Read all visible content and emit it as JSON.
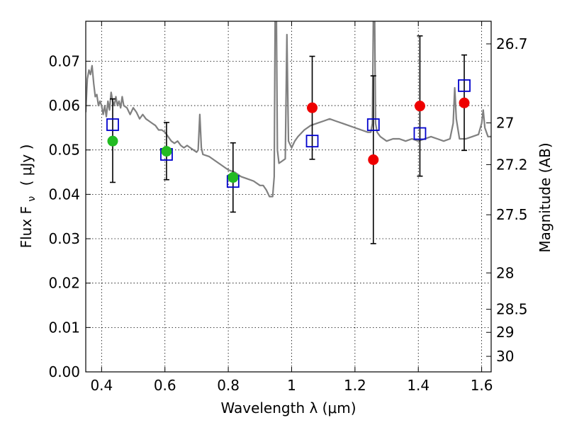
{
  "chart_data": {
    "type": "scatter",
    "xlabel": "Wavelength  λ (μm)",
    "ylabel_left": "Flux  F",
    "ylabel_left_sub": "ν",
    "ylabel_left_unit": "( μJy )",
    "ylabel_right": "Magnitude (AB)",
    "xlim": [
      0.35,
      1.63
    ],
    "ylim": [
      0.0,
      0.079
    ],
    "xticks": [
      {
        "value": 0.4,
        "label": "0.4"
      },
      {
        "value": 0.6,
        "label": "0.6"
      },
      {
        "value": 0.8,
        "label": "0.8"
      },
      {
        "value": 1.0,
        "label": "1"
      },
      {
        "value": 1.2,
        "label": "1.2"
      },
      {
        "value": 1.4,
        "label": "1.4"
      },
      {
        "value": 1.6,
        "label": "1.6"
      }
    ],
    "yticks": [
      {
        "value": 0.0,
        "label": "0.00"
      },
      {
        "value": 0.01,
        "label": "0.01"
      },
      {
        "value": 0.02,
        "label": "0.02"
      },
      {
        "value": 0.03,
        "label": "0.03"
      },
      {
        "value": 0.04,
        "label": "0.04"
      },
      {
        "value": 0.05,
        "label": "0.05"
      },
      {
        "value": 0.06,
        "label": "0.06"
      },
      {
        "value": 0.07,
        "label": "0.07"
      }
    ],
    "right_ticks": [
      {
        "label": "26.7",
        "flux": 0.0739
      },
      {
        "label": "27",
        "flux": 0.0561
      },
      {
        "label": "27.2",
        "flux": 0.0467
      },
      {
        "label": "27.5",
        "flux": 0.0354
      },
      {
        "label": "28",
        "flux": 0.0223
      },
      {
        "label": "28.5",
        "flux": 0.0141
      },
      {
        "label": "29",
        "flux": 0.0089
      },
      {
        "label": "30",
        "flux": 0.0035
      }
    ],
    "grid": true,
    "series": [
      {
        "kind": "spectrum",
        "color": "#808080",
        "points": [
          [
            0.35,
            0.0585
          ],
          [
            0.355,
            0.066
          ],
          [
            0.36,
            0.068
          ],
          [
            0.365,
            0.067
          ],
          [
            0.37,
            0.069
          ],
          [
            0.375,
            0.065
          ],
          [
            0.38,
            0.062
          ],
          [
            0.385,
            0.0625
          ],
          [
            0.39,
            0.06
          ],
          [
            0.395,
            0.061
          ],
          [
            0.4,
            0.06
          ],
          [
            0.405,
            0.058
          ],
          [
            0.41,
            0.06
          ],
          [
            0.415,
            0.0575
          ],
          [
            0.42,
            0.061
          ],
          [
            0.425,
            0.059
          ],
          [
            0.43,
            0.063
          ],
          [
            0.435,
            0.061
          ],
          [
            0.44,
            0.06
          ],
          [
            0.445,
            0.062
          ],
          [
            0.45,
            0.06
          ],
          [
            0.455,
            0.061
          ],
          [
            0.46,
            0.0595
          ],
          [
            0.465,
            0.062
          ],
          [
            0.47,
            0.06
          ],
          [
            0.48,
            0.0595
          ],
          [
            0.49,
            0.058
          ],
          [
            0.5,
            0.0595
          ],
          [
            0.51,
            0.0585
          ],
          [
            0.52,
            0.057
          ],
          [
            0.53,
            0.058
          ],
          [
            0.54,
            0.057
          ],
          [
            0.55,
            0.0565
          ],
          [
            0.56,
            0.056
          ],
          [
            0.57,
            0.0555
          ],
          [
            0.58,
            0.0545
          ],
          [
            0.59,
            0.0545
          ],
          [
            0.6,
            0.054
          ],
          [
            0.61,
            0.053
          ],
          [
            0.62,
            0.052
          ],
          [
            0.63,
            0.0515
          ],
          [
            0.64,
            0.052
          ],
          [
            0.65,
            0.051
          ],
          [
            0.66,
            0.0505
          ],
          [
            0.67,
            0.051
          ],
          [
            0.68,
            0.0505
          ],
          [
            0.69,
            0.05
          ],
          [
            0.7,
            0.0495
          ],
          [
            0.705,
            0.05
          ],
          [
            0.71,
            0.058
          ],
          [
            0.715,
            0.0505
          ],
          [
            0.72,
            0.049
          ],
          [
            0.74,
            0.0485
          ],
          [
            0.76,
            0.0475
          ],
          [
            0.78,
            0.0465
          ],
          [
            0.8,
            0.0455
          ],
          [
            0.82,
            0.045
          ],
          [
            0.84,
            0.044
          ],
          [
            0.86,
            0.0435
          ],
          [
            0.88,
            0.043
          ],
          [
            0.9,
            0.042
          ],
          [
            0.91,
            0.042
          ],
          [
            0.92,
            0.041
          ],
          [
            0.93,
            0.0395
          ],
          [
            0.94,
            0.0395
          ],
          [
            0.945,
            0.044
          ],
          [
            0.948,
            0.08
          ],
          [
            0.952,
            0.08
          ],
          [
            0.955,
            0.05
          ],
          [
            0.96,
            0.047
          ],
          [
            0.97,
            0.0475
          ],
          [
            0.98,
            0.048
          ],
          [
            0.985,
            0.076
          ],
          [
            0.99,
            0.052
          ],
          [
            1.0,
            0.0505
          ],
          [
            1.01,
            0.052
          ],
          [
            1.02,
            0.053
          ],
          [
            1.04,
            0.0545
          ],
          [
            1.06,
            0.0555
          ],
          [
            1.08,
            0.056
          ],
          [
            1.1,
            0.0565
          ],
          [
            1.12,
            0.057
          ],
          [
            1.14,
            0.0565
          ],
          [
            1.16,
            0.056
          ],
          [
            1.18,
            0.0555
          ],
          [
            1.2,
            0.055
          ],
          [
            1.22,
            0.0545
          ],
          [
            1.24,
            0.054
          ],
          [
            1.25,
            0.054
          ],
          [
            1.255,
            0.056
          ],
          [
            1.258,
            0.08
          ],
          [
            1.262,
            0.08
          ],
          [
            1.265,
            0.056
          ],
          [
            1.27,
            0.054
          ],
          [
            1.28,
            0.053
          ],
          [
            1.3,
            0.052
          ],
          [
            1.32,
            0.0525
          ],
          [
            1.34,
            0.0525
          ],
          [
            1.36,
            0.052
          ],
          [
            1.38,
            0.0525
          ],
          [
            1.4,
            0.052
          ],
          [
            1.42,
            0.0525
          ],
          [
            1.44,
            0.053
          ],
          [
            1.46,
            0.0525
          ],
          [
            1.48,
            0.052
          ],
          [
            1.5,
            0.0525
          ],
          [
            1.51,
            0.056
          ],
          [
            1.515,
            0.064
          ],
          [
            1.52,
            0.057
          ],
          [
            1.53,
            0.0525
          ],
          [
            1.55,
            0.0525
          ],
          [
            1.57,
            0.053
          ],
          [
            1.59,
            0.0535
          ],
          [
            1.6,
            0.056
          ],
          [
            1.605,
            0.059
          ],
          [
            1.61,
            0.055
          ],
          [
            1.62,
            0.053
          ],
          [
            1.63,
            0.053
          ]
        ]
      },
      {
        "kind": "model-photometry",
        "marker": "open-square",
        "color": "#0000cc",
        "points": [
          [
            0.435,
            0.0557
          ],
          [
            0.605,
            0.049
          ],
          [
            0.815,
            0.0429
          ],
          [
            1.065,
            0.052
          ],
          [
            1.258,
            0.0557
          ],
          [
            1.405,
            0.0537
          ],
          [
            1.545,
            0.0645
          ]
        ]
      },
      {
        "kind": "observed-detections",
        "marker": "filled-circle",
        "color": "#22bb22",
        "points": [
          {
            "x": 0.435,
            "y": 0.052,
            "ylo": 0.0427,
            "yhi": 0.0615
          },
          {
            "x": 0.605,
            "y": 0.0497,
            "ylo": 0.0433,
            "yhi": 0.0562
          },
          {
            "x": 0.815,
            "y": 0.0438,
            "ylo": 0.036,
            "yhi": 0.0516
          }
        ]
      },
      {
        "kind": "observed-limits",
        "marker": "filled-circle",
        "color": "#ee0000",
        "points": [
          {
            "x": 1.065,
            "y": 0.0595,
            "ylo": 0.0479,
            "yhi": 0.0711
          },
          {
            "x": 1.258,
            "y": 0.0478,
            "ylo": 0.0289,
            "yhi": 0.0667
          },
          {
            "x": 1.405,
            "y": 0.0599,
            "ylo": 0.0441,
            "yhi": 0.0757
          },
          {
            "x": 1.545,
            "y": 0.0606,
            "ylo": 0.0499,
            "yhi": 0.0714
          }
        ]
      }
    ]
  }
}
